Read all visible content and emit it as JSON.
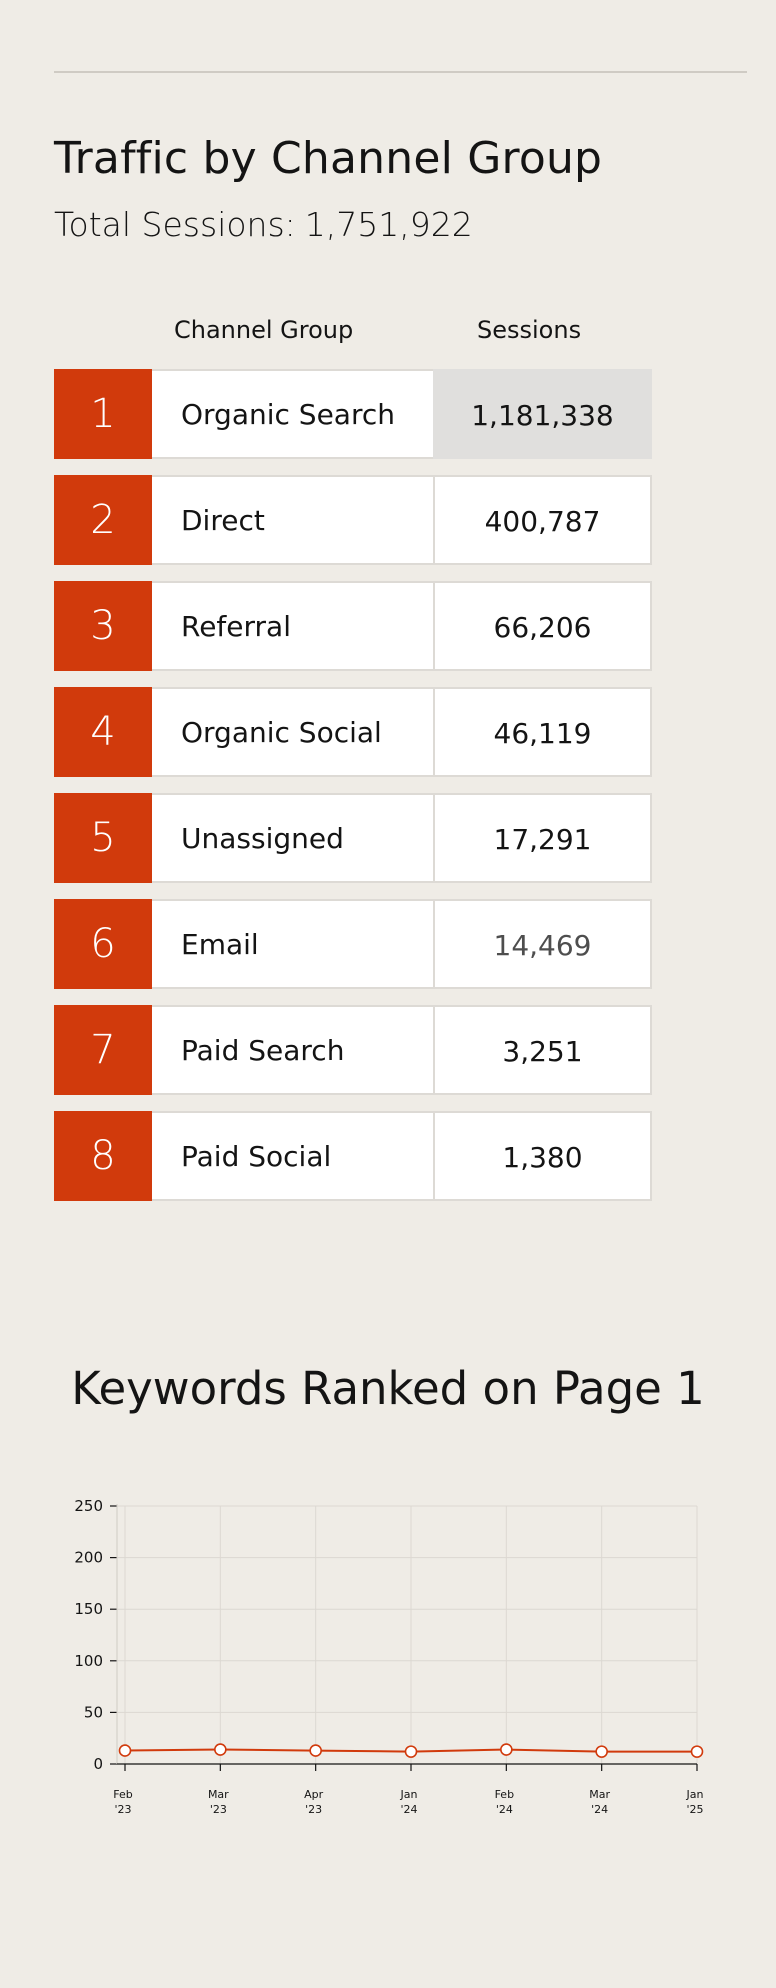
{
  "report": {
    "title": "Traffic by Channel Group",
    "total_label": "Total Sessions:",
    "total_value": "1,751,922"
  },
  "table": {
    "headers": {
      "channel": "Channel Group",
      "sessions": "Sessions"
    },
    "rows": [
      {
        "rank": "1",
        "channel": "Organic Search",
        "sessions": "1,181,338"
      },
      {
        "rank": "2",
        "channel": "Direct",
        "sessions": "400,787"
      },
      {
        "rank": "3",
        "channel": "Referral",
        "sessions": "66,206"
      },
      {
        "rank": "4",
        "channel": "Organic Social",
        "sessions": "46,119"
      },
      {
        "rank": "5",
        "channel": "Unassigned",
        "sessions": "17,291"
      },
      {
        "rank": "6",
        "channel": "Email",
        "sessions": "14,469"
      },
      {
        "rank": "7",
        "channel": "Paid Search",
        "sessions": "3,251"
      },
      {
        "rank": "8",
        "channel": "Paid Social",
        "sessions": "1,380"
      }
    ]
  },
  "colors": {
    "accent": "#d13a0c",
    "background": "#efece6",
    "line": "#d13a0c"
  },
  "chart_title": "Keywords Ranked on Page 1",
  "chart_data": {
    "type": "line",
    "title": "Keywords Ranked on Page 1",
    "xlabel": "",
    "ylabel": "",
    "categories": [
      [
        "Feb",
        "'23"
      ],
      [
        "Mar",
        "'23"
      ],
      [
        "Apr",
        "'23"
      ],
      [
        "Jan",
        "'24"
      ],
      [
        "Feb",
        "'24"
      ],
      [
        "Mar",
        "'24"
      ],
      [
        "Jan",
        "'25"
      ]
    ],
    "series": [
      {
        "values": [
          13,
          14,
          13,
          12,
          14,
          12,
          12
        ]
      }
    ],
    "yticks": [
      0,
      50,
      100,
      150,
      200,
      250
    ],
    "ylim": [
      0,
      250
    ],
    "grid": true,
    "legend": "none"
  }
}
